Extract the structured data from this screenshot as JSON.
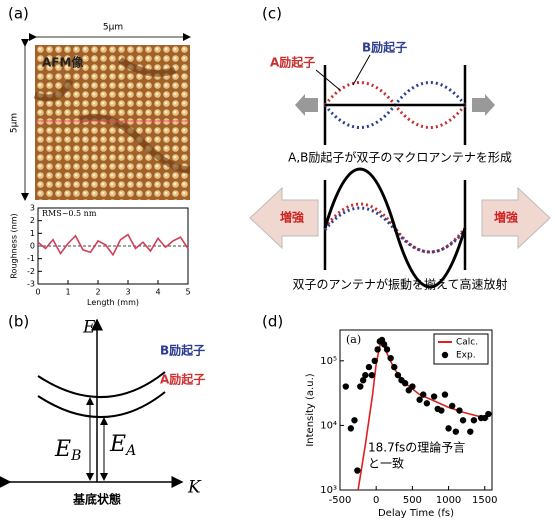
{
  "labels": {
    "a": "(a)",
    "b": "(b)",
    "c": "(c)",
    "d": "(d)"
  },
  "panel_a": {
    "scale_x": "5µm",
    "scale_y": "5µm",
    "image_label": "AFM像"
  },
  "panel_b": {
    "axis_e": "E",
    "axis_k": "K",
    "b_exciton": "B励起子",
    "a_exciton": "A励起子",
    "e_b": {
      "main": "E",
      "sub": "B"
    },
    "e_a": {
      "main": "E",
      "sub": "A"
    },
    "ground": "基底状態"
  },
  "panel_c": {
    "a_exciton": "A励起子",
    "b_exciton": "B励起子",
    "caption1": "A,B励起子が双子のマクロアンテナを形成",
    "enhance_left": "増強",
    "enhance_right": "増強",
    "caption2": "双子のアンテナが振動を揃えて高速放射"
  },
  "chart_data": [
    {
      "type": "line",
      "x_label": "Length (mm)",
      "y_label": "Roughness (nm)",
      "annotation": "RMS~0.5 nm",
      "x": [
        0,
        0.25,
        0.5,
        0.75,
        1,
        1.25,
        1.5,
        1.75,
        2,
        2.25,
        2.5,
        2.75,
        3,
        3.25,
        3.5,
        3.75,
        4,
        4.25,
        4.5,
        4.75,
        5
      ],
      "values": [
        0.3,
        -0.2,
        0.5,
        -0.6,
        0.2,
        0.8,
        -0.3,
        -0.5,
        0.4,
        0.1,
        -0.7,
        0.5,
        0.9,
        -0.2,
        0.3,
        -0.4,
        0.6,
        -0.1,
        0.4,
        0.7,
        -0.2
      ],
      "color": "#d0405a",
      "xlim": [
        0,
        5
      ],
      "xticks": [
        0,
        1,
        2,
        3,
        4,
        5
      ],
      "ylim": [
        -3,
        3
      ],
      "yticks": [
        -3,
        -2,
        -1,
        0,
        1,
        2,
        3
      ]
    },
    {
      "type": "line",
      "title": "(a)",
      "x_label": "Delay Time (fs)",
      "y_label": "Intensity (a.u.)",
      "annotation": [
        "18.7fsの理論予言",
        "と一致"
      ],
      "log_y": true,
      "legend": "upper right",
      "xlim": [
        -500,
        1600
      ],
      "xticks": [
        -500,
        0,
        500,
        1000,
        1500
      ],
      "ylim": [
        1000,
        300000
      ],
      "yticks": [
        {
          "value": 1000,
          "label": "10³"
        },
        {
          "value": 10000,
          "label": "10⁴"
        },
        {
          "value": 100000,
          "label": "10⁵"
        }
      ],
      "series": [
        {
          "name": "Calc.",
          "color": "#e02020",
          "mode": "lines",
          "x": [
            -250,
            -150,
            -50,
            0,
            50,
            80,
            150,
            250,
            400,
            600,
            800,
            1000,
            1200,
            1400,
            1550
          ],
          "values": [
            1000,
            5000,
            30000,
            90000,
            170000,
            200000,
            130000,
            75000,
            45000,
            30000,
            24000,
            19000,
            16000,
            14000,
            12500
          ]
        },
        {
          "name": "Exp.",
          "color": "#000000",
          "mode": "markers",
          "x": [
            -420,
            -350,
            -300,
            -260,
            -220,
            -180,
            -150,
            -100,
            -60,
            -20,
            20,
            50,
            80,
            110,
            150,
            200,
            250,
            300,
            350,
            400,
            450,
            500,
            600,
            650,
            700,
            800,
            850,
            900,
            950,
            1000,
            1050,
            1100,
            1150,
            1200,
            1300,
            1350,
            1450,
            1500,
            1550
          ],
          "values": [
            40000,
            9000,
            12000,
            2000,
            40000,
            50000,
            60000,
            80000,
            60000,
            100000,
            150000,
            200000,
            210000,
            180000,
            150000,
            110000,
            80000,
            60000,
            50000,
            45000,
            35000,
            40000,
            25000,
            30000,
            22000,
            28000,
            18000,
            17000,
            30000,
            9000,
            20000,
            8000,
            17000,
            12000,
            8000,
            12000,
            13000,
            13000,
            15000
          ]
        }
      ]
    }
  ]
}
